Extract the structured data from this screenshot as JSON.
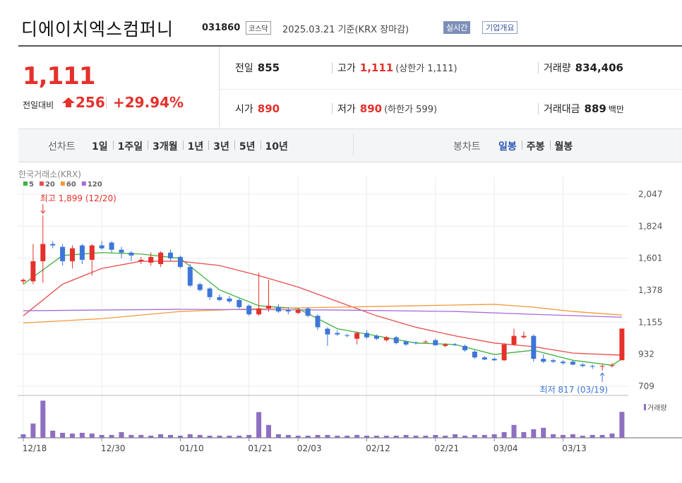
{
  "header": {
    "title": "디에이치엑스컴퍼니",
    "code": "031860",
    "market": "코스닥",
    "date": "2025.03.21 기준(KRX 장마감)",
    "realtime": "실시간",
    "company_info": "기업개요"
  },
  "quote": {
    "price": "1,111",
    "change_label": "전일대비",
    "change": "256",
    "change_rate": "+29.94%",
    "color": "#e4312b"
  },
  "stats": [
    {
      "label": "전일",
      "value": "855"
    },
    {
      "label": "고가",
      "value": "1,111",
      "note": "(상한가 1,111)",
      "color": "#e4312b"
    },
    {
      "label": "거래량",
      "value": "834,406"
    },
    {
      "label": "시가",
      "value": "890",
      "color": "#e4312b"
    },
    {
      "label": "저가",
      "value": "890",
      "note": "(하한가 599)",
      "color": "#e4312b"
    },
    {
      "label": "거래대금",
      "value": "889",
      "unit": "백만"
    }
  ],
  "tabs": {
    "line_label": "선차트",
    "line": [
      "1일",
      "1주일",
      "3개월",
      "1년",
      "3년",
      "5년",
      "10년"
    ],
    "candle_label": "봉차트",
    "candle": [
      "일봉",
      "주봉",
      "월봉"
    ],
    "selected_candle": 0
  },
  "chart": {
    "type": "candlestick",
    "source": "한국거래소(KRX)",
    "up_color": "#e4312b",
    "down_color": "#3d76d8",
    "open": [
      1440,
      1440,
      1580,
      1700,
      1680,
      1580,
      1690,
      1590,
      1690,
      1710,
      1660,
      1640,
      1580,
      1570,
      1560,
      1640,
      1610,
      1540,
      1420,
      1390,
      1330,
      1320,
      1310,
      1270,
      1210,
      1250,
      1260,
      1240,
      1220,
      1250,
      1200,
      1110,
      1080,
      1065,
      1040,
      1080,
      1060,
      1030,
      1050,
      1020,
      1015,
      1020,
      1030,
      990,
      1000,
      990,
      950,
      910,
      900,
      890,
      1000,
      1050,
      1060,
      900,
      890,
      880,
      880,
      860,
      850,
      845,
      850,
      890
    ],
    "high": [
      1460,
      1700,
      1899,
      1720,
      1700,
      1690,
      1700,
      1700,
      1720,
      1720,
      1680,
      1650,
      1610,
      1640,
      1650,
      1660,
      1620,
      1560,
      1430,
      1400,
      1350,
      1340,
      1320,
      1280,
      1500,
      1450,
      1280,
      1260,
      1250,
      1260,
      1210,
      1120,
      1100,
      1075,
      1090,
      1100,
      1070,
      1060,
      1060,
      1030,
      1020,
      1030,
      1040,
      1010,
      1010,
      1000,
      960,
      920,
      910,
      1010,
      1110,
      1090,
      1070,
      930,
      900,
      890,
      890,
      870,
      860,
      860,
      870,
      1111
    ],
    "low": [
      1420,
      1420,
      1430,
      1670,
      1550,
      1530,
      1560,
      1480,
      1660,
      1640,
      1600,
      1580,
      1560,
      1550,
      1540,
      1580,
      1530,
      1400,
      1370,
      1310,
      1300,
      1290,
      1250,
      1200,
      1200,
      1230,
      1220,
      1210,
      1210,
      1190,
      1100,
      990,
      1060,
      1050,
      1000,
      1040,
      1030,
      1020,
      1000,
      990,
      1000,
      1010,
      990,
      980,
      990,
      950,
      900,
      890,
      885,
      885,
      990,
      1040,
      880,
      870,
      870,
      860,
      855,
      840,
      830,
      817,
      840,
      890
    ],
    "close": [
      1450,
      1580,
      1700,
      1690,
      1580,
      1670,
      1590,
      1690,
      1670,
      1660,
      1640,
      1620,
      1590,
      1610,
      1640,
      1600,
      1540,
      1410,
      1380,
      1330,
      1310,
      1300,
      1260,
      1210,
      1250,
      1270,
      1230,
      1230,
      1240,
      1200,
      1120,
      1070,
      1070,
      1060,
      1080,
      1050,
      1040,
      1050,
      1010,
      1000,
      1010,
      1020,
      995,
      1000,
      995,
      960,
      910,
      895,
      890,
      1000,
      1060,
      1060,
      900,
      880,
      880,
      870,
      860,
      850,
      845,
      850,
      855,
      1111
    ],
    "volume": [
      115000,
      460000,
      1196000,
      230000,
      161000,
      138000,
      161000,
      138000,
      92000,
      92000,
      184000,
      92000,
      92000,
      69000,
      115000,
      92000,
      69000,
      115000,
      92000,
      69000,
      69000,
      69000,
      69000,
      92000,
      828000,
      414000,
      115000,
      92000,
      69000,
      69000,
      92000,
      92000,
      69000,
      69000,
      92000,
      69000,
      69000,
      69000,
      69000,
      92000,
      69000,
      69000,
      92000,
      69000,
      115000,
      69000,
      92000,
      92000,
      115000,
      184000,
      414000,
      184000,
      276000,
      322000,
      115000,
      92000,
      115000,
      69000,
      92000,
      92000,
      138000,
      834406
    ],
    "volume_ylim": [
      0,
      1250000
    ],
    "volume_label": "거래량",
    "volume_color": "#8e6fc0",
    "ma": [
      {
        "name": "5",
        "color": "#3fb13f",
        "x": [
          0,
          4,
          8,
          12,
          16,
          20,
          24,
          28,
          32,
          36,
          40,
          44,
          48,
          52,
          56,
          60,
          61
        ],
        "values": [
          1420,
          1620,
          1640,
          1630,
          1600,
          1380,
          1270,
          1250,
          1110,
          1060,
          1010,
          1000,
          930,
          960,
          890,
          855,
          900
        ]
      },
      {
        "name": "20",
        "color": "#e94e4e",
        "x": [
          0,
          4,
          8,
          12,
          16,
          20,
          24,
          28,
          32,
          36,
          40,
          44,
          48,
          52,
          56,
          61
        ],
        "values": [
          1200,
          1420,
          1530,
          1580,
          1580,
          1550,
          1480,
          1400,
          1300,
          1200,
          1120,
          1060,
          1010,
          985,
          940,
          925
        ]
      },
      {
        "name": "60",
        "color": "#f29a3a",
        "x": [
          0,
          8,
          16,
          24,
          32,
          40,
          48,
          52,
          56,
          61
        ],
        "values": [
          1150,
          1180,
          1230,
          1250,
          1260,
          1270,
          1280,
          1260,
          1230,
          1205
        ]
      },
      {
        "name": "120",
        "color": "#a66cd9",
        "x": [
          0,
          16,
          32,
          44,
          52,
          61
        ],
        "values": [
          1235,
          1245,
          1240,
          1230,
          1210,
          1190
        ]
      }
    ],
    "ylim": [
      645,
      2111
    ],
    "yticks": [
      {
        "value": 2047,
        "label": "2,047"
      },
      {
        "value": 1824,
        "label": "1,824"
      },
      {
        "value": 1601,
        "label": "1,601"
      },
      {
        "value": 1378,
        "label": "1,378"
      },
      {
        "value": 1155,
        "label": "1,155"
      },
      {
        "value": 932,
        "label": "932"
      },
      {
        "value": 709,
        "label": "709"
      }
    ],
    "xticks": [
      {
        "value": 0,
        "label": "12/18"
      },
      {
        "value": 8,
        "label": "12/30"
      },
      {
        "value": 16,
        "label": "01/10"
      },
      {
        "value": 23,
        "label": "01/21"
      },
      {
        "value": 28,
        "label": "02/03"
      },
      {
        "value": 35,
        "label": "02/12"
      },
      {
        "value": 42,
        "label": "02/21"
      },
      {
        "value": 48,
        "label": "03/04"
      },
      {
        "value": 55,
        "label": "03/13"
      }
    ],
    "annotations": {
      "high": "최고 1,899 (12/20)",
      "low": "최저 817 (03/19)"
    },
    "grid": true
  }
}
